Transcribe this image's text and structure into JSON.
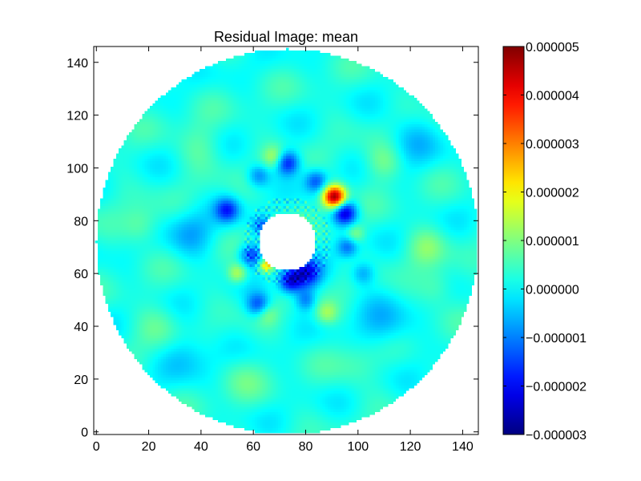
{
  "chart_data": {
    "type": "heatmap",
    "title": "Residual Image: mean",
    "xlabel": "",
    "ylabel": "",
    "xlim": [
      -1,
      146
    ],
    "ylim": [
      -1,
      146
    ],
    "x_ticks": [
      0,
      20,
      40,
      60,
      80,
      100,
      120,
      140
    ],
    "y_ticks": [
      0,
      20,
      40,
      60,
      80,
      100,
      120,
      140
    ],
    "grid": false,
    "colormap": "jet",
    "colorbar": {
      "range": [
        -3e-06,
        5e-06
      ],
      "ticks": [
        {
          "value": 5e-06,
          "label": "0.000005"
        },
        {
          "value": 4e-06,
          "label": "0.000004"
        },
        {
          "value": 3e-06,
          "label": "0.000003"
        },
        {
          "value": 2e-06,
          "label": "0.000002"
        },
        {
          "value": 1e-06,
          "label": "0.000001"
        },
        {
          "value": 0.0,
          "label": "0.000000"
        },
        {
          "value": -1e-06,
          "label": "−0.000001"
        },
        {
          "value": -2e-06,
          "label": "−0.000002"
        },
        {
          "value": -3e-06,
          "label": "−0.000003"
        }
      ]
    },
    "field": {
      "center": [
        73,
        72
      ],
      "outer_radius": 73,
      "inner_radius": 11,
      "background_value": 2e-07
    },
    "features": [
      {
        "x": 91,
        "y": 89,
        "value": 4.8e-06,
        "sigma": 3.0,
        "note": "positive blob"
      },
      {
        "x": 95,
        "y": 83,
        "value": -2.6e-06,
        "sigma": 3.2
      },
      {
        "x": 80,
        "y": 60,
        "value": -2.4e-06,
        "sigma": 4.0
      },
      {
        "x": 74,
        "y": 57,
        "value": -2.2e-06,
        "sigma": 3.0
      },
      {
        "x": 73,
        "y": 102,
        "value": -2.1e-06,
        "sigma": 3.2
      },
      {
        "x": 84,
        "y": 95,
        "value": -1.5e-06,
        "sigma": 3.0
      },
      {
        "x": 62,
        "y": 97,
        "value": -1.2e-06,
        "sigma": 3.0
      },
      {
        "x": 50,
        "y": 84,
        "value": -1.8e-06,
        "sigma": 3.2
      },
      {
        "x": 59,
        "y": 67,
        "value": -1.8e-06,
        "sigma": 3.0
      },
      {
        "x": 63,
        "y": 78,
        "value": -1.2e-06,
        "sigma": 2.5
      },
      {
        "x": 62,
        "y": 48,
        "value": -1.7e-06,
        "sigma": 3.2
      },
      {
        "x": 80,
        "y": 50,
        "value": -1.2e-06,
        "sigma": 2.8
      },
      {
        "x": 96,
        "y": 70,
        "value": -1.3e-06,
        "sigma": 2.8
      },
      {
        "x": 102,
        "y": 60,
        "value": -1e-06,
        "sigma": 3.2
      },
      {
        "x": 36,
        "y": 75,
        "value": -8e-07,
        "sigma": 6.0
      },
      {
        "x": 110,
        "y": 40,
        "value": -7e-07,
        "sigma": 7.0
      },
      {
        "x": 35,
        "y": 30,
        "value": -6e-07,
        "sigma": 7.0
      },
      {
        "x": 120,
        "y": 110,
        "value": -6e-07,
        "sigma": 7.0
      },
      {
        "x": 65,
        "y": 63,
        "value": 2.2e-06,
        "sigma": 1.8
      },
      {
        "x": 54,
        "y": 60,
        "value": 1.3e-06,
        "sigma": 2.6
      },
      {
        "x": 68,
        "y": 104,
        "value": 1.1e-06,
        "sigma": 3.0
      },
      {
        "x": 88,
        "y": 45,
        "value": 1e-06,
        "sigma": 3.0
      },
      {
        "x": 65,
        "y": 45,
        "value": 8e-07,
        "sigma": 3.0
      },
      {
        "x": 99,
        "y": 75,
        "value": 9e-07,
        "sigma": 2.5
      },
      {
        "x": 17,
        "y": 78,
        "value": 7e-07,
        "sigma": 5.0
      },
      {
        "x": 110,
        "y": 102,
        "value": 8e-07,
        "sigma": 5.0
      },
      {
        "x": 126,
        "y": 70,
        "value": 7e-07,
        "sigma": 5.0
      },
      {
        "x": 130,
        "y": 55,
        "value": 6e-07,
        "sigma": 5.0
      },
      {
        "x": 40,
        "y": 108,
        "value": 5e-07,
        "sigma": 6.0
      },
      {
        "x": 24,
        "y": 40,
        "value": 5e-07,
        "sigma": 6.0
      },
      {
        "x": 55,
        "y": 20,
        "value": 4e-07,
        "sigma": 6.0
      },
      {
        "x": 100,
        "y": 25,
        "value": 4e-07,
        "sigma": 6.0
      }
    ]
  }
}
